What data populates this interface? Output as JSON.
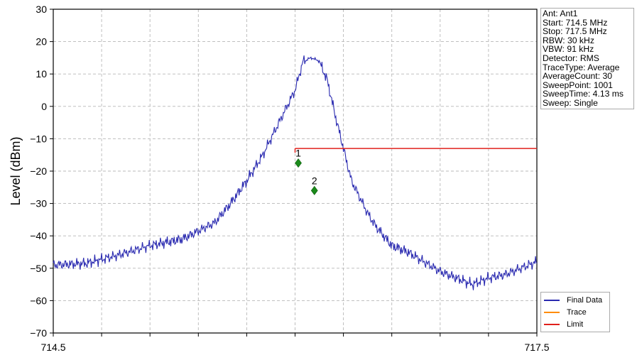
{
  "chart_data": {
    "type": "line",
    "title": "",
    "xlabel": "",
    "ylabel": "Level (dBm)",
    "xlim": [
      714.5,
      717.5
    ],
    "ylim": [
      -70,
      30
    ],
    "x_tick_labels": [
      "714.5",
      "717.5"
    ],
    "y_ticks": [
      30,
      20,
      10,
      0,
      -10,
      -20,
      -30,
      -40,
      -50,
      -60,
      -70
    ],
    "y_tick_labels": [
      "30",
      "20",
      "10",
      "0",
      "−10",
      "−20",
      "−30",
      "−40",
      "−50",
      "−60",
      "−70"
    ],
    "grid": true,
    "legend_position": "bottom-right",
    "series": [
      {
        "name": "Final Data",
        "color": "#2a2ab0",
        "x": [
          714.5,
          714.7,
          714.9,
          715.1,
          715.3,
          715.5,
          715.6,
          715.7,
          715.8,
          715.9,
          716.0,
          716.05,
          716.1,
          716.15,
          716.2,
          716.25,
          716.3,
          716.35,
          716.4,
          716.45,
          716.5,
          716.55,
          716.6,
          716.7,
          716.8,
          716.9,
          717.0,
          717.1,
          717.2,
          717.3,
          717.4,
          717.5
        ],
        "y": [
          -49,
          -48.5,
          -46,
          -43,
          -41,
          -36,
          -30,
          -23,
          -15,
          -5,
          5,
          14,
          15,
          14,
          8,
          -3,
          -13,
          -23,
          -28,
          -33,
          -37,
          -40,
          -43,
          -45,
          -48,
          -51,
          -53,
          -55,
          -53,
          -52,
          -50,
          -48
        ]
      },
      {
        "name": "Trace",
        "color": "#ff8c00",
        "x": [],
        "y": []
      },
      {
        "name": "Limit",
        "color": "#e0201b",
        "x": [
          716.0,
          717.5
        ],
        "y": [
          -13,
          -13
        ]
      }
    ],
    "markers": [
      {
        "label": "1",
        "x": 716.02,
        "y": -17.5,
        "color": "#1a8a1a"
      },
      {
        "label": "2",
        "x": 716.12,
        "y": -26,
        "color": "#1a8a1a"
      }
    ]
  },
  "info_box": {
    "lines": [
      "Ant: Ant1",
      "Start: 714.5 MHz",
      "Stop: 717.5 MHz",
      "RBW: 30 kHz",
      "VBW: 91 kHz",
      "Detector: RMS",
      "TraceType: Average",
      "AverageCount: 30",
      "SweepPoint: 1001",
      "SweepTime: 4.13 ms",
      "Sweep: Single"
    ]
  },
  "legend": {
    "items": [
      {
        "label": "Final Data",
        "color": "#2a2ab0"
      },
      {
        "label": "Trace",
        "color": "#ff8c00"
      },
      {
        "label": "Limit",
        "color": "#e0201b"
      }
    ]
  }
}
